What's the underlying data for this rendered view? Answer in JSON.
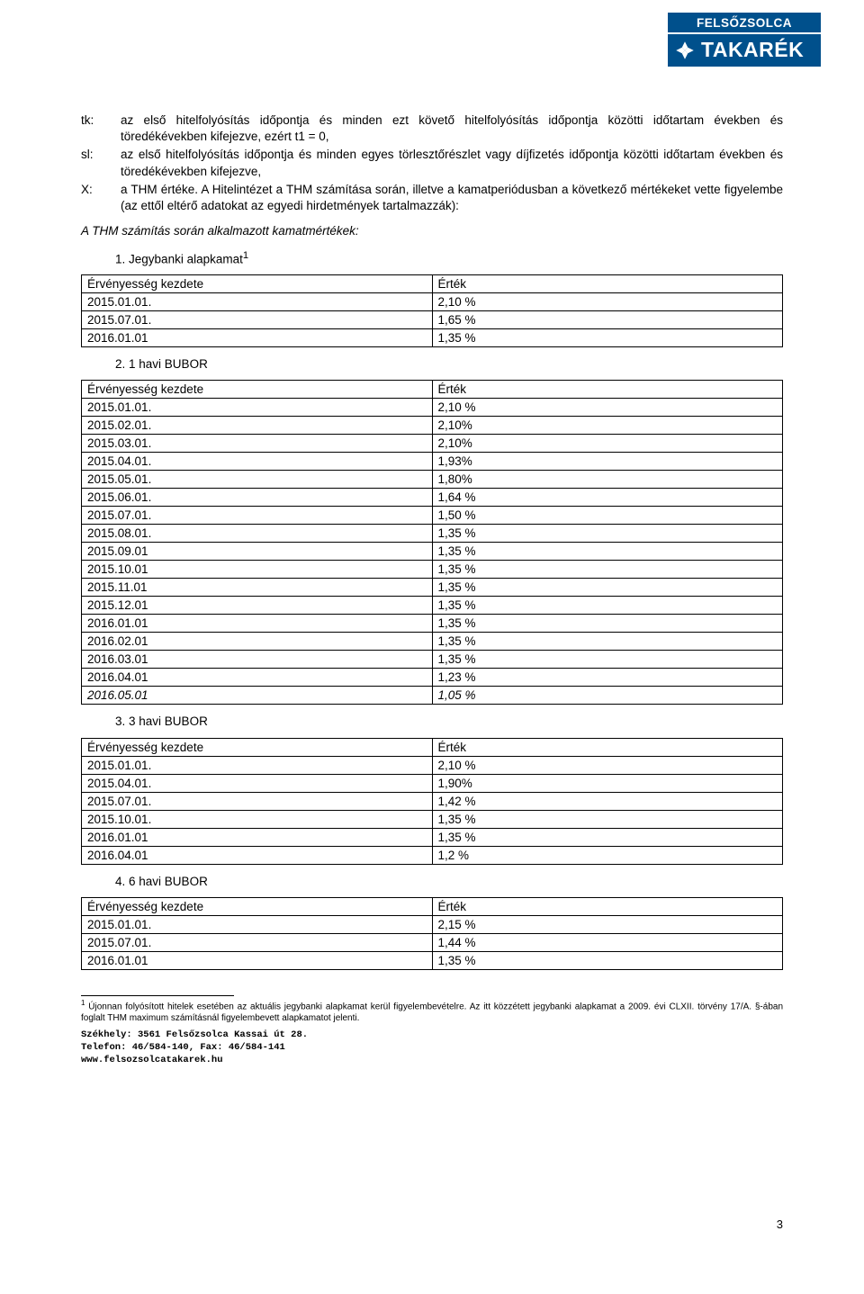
{
  "logo": {
    "top": "FELSŐZSOLCA",
    "bottom": "TAKARÉK",
    "bg_color": "#00508c",
    "text_color": "#ffffff"
  },
  "definitions": [
    {
      "label": "tk:",
      "text": "az első hitelfolyósítás időpontja és minden ezt követő hitelfolyósítás időpontja közötti időtartam években és töredékévekben kifejezve, ezért t1 = 0,"
    },
    {
      "label": "sl:",
      "text": "az első hitelfolyósítás időpontja és minden egyes törlesztőrészlet vagy díjfizetés időpontja közötti időtartam években és töredékévekben kifejezve,"
    },
    {
      "label": "X:",
      "text": "a THM értéke. A Hitelintézet a THM számítása során, illetve a kamatperiódusban a következő mértékeket vette figyelembe (az ettől eltérő adatokat az egyedi hirdetmények tartalmazzák):"
    }
  ],
  "intro_italic": "A THM számítás során alkalmazott kamatmértékek:",
  "sections": [
    {
      "number": "1.",
      "title": "Jegybanki alapkamat",
      "sup": "1",
      "table": {
        "columns": [
          "Érvényesség kezdete",
          "Érték"
        ],
        "rows": [
          [
            "2015.01.01.",
            "2,10 %"
          ],
          [
            "2015.07.01.",
            "1,65 %"
          ],
          [
            "2016.01.01",
            "1,35 %"
          ]
        ],
        "italic_rows": []
      }
    },
    {
      "number": "2.",
      "title": "1 havi BUBOR",
      "sup": "",
      "table": {
        "columns": [
          "Érvényesség kezdete",
          "Érték"
        ],
        "rows": [
          [
            "2015.01.01.",
            "2,10 %"
          ],
          [
            "2015.02.01.",
            "2,10%"
          ],
          [
            "2015.03.01.",
            "2,10%"
          ],
          [
            "2015.04.01.",
            "1,93%"
          ],
          [
            "2015.05.01.",
            "1,80%"
          ],
          [
            "2015.06.01.",
            "1,64 %"
          ],
          [
            "2015.07.01.",
            "1,50 %"
          ],
          [
            "2015.08.01.",
            "1,35 %"
          ],
          [
            "2015.09.01",
            "1,35 %"
          ],
          [
            "2015.10.01",
            "1,35 %"
          ],
          [
            "2015.11.01",
            "1,35 %"
          ],
          [
            "2015.12.01",
            "1,35 %"
          ],
          [
            "2016.01.01",
            "1,35 %"
          ],
          [
            "2016.02.01",
            "1,35 %"
          ],
          [
            "2016.03.01",
            "1,35 %"
          ],
          [
            "2016.04.01",
            "1,23 %"
          ],
          [
            "2016.05.01",
            "1,05 %"
          ]
        ],
        "italic_rows": [
          16
        ]
      }
    },
    {
      "number": "3.",
      "title": "3 havi BUBOR",
      "sup": "",
      "table": {
        "columns": [
          "Érvényesség kezdete",
          "Érték"
        ],
        "rows": [
          [
            "2015.01.01.",
            "2,10 %"
          ],
          [
            "2015.04.01.",
            "1,90%"
          ],
          [
            "2015.07.01.",
            "1,42 %"
          ],
          [
            "2015.10.01.",
            "1,35 %"
          ],
          [
            "2016.01.01",
            "1,35 %"
          ],
          [
            "2016.04.01",
            "1,2 %"
          ]
        ],
        "italic_rows": []
      }
    },
    {
      "number": "4.",
      "title": "6 havi BUBOR",
      "sup": "",
      "table": {
        "columns": [
          "Érvényesség kezdete",
          "Érték"
        ],
        "rows": [
          [
            "2015.01.01.",
            "2,15 %"
          ],
          [
            "2015.07.01.",
            "1,44 %"
          ],
          [
            "2016.01.01",
            "1,35 %"
          ]
        ],
        "italic_rows": []
      }
    }
  ],
  "footnote": {
    "marker": "1",
    "text": "Újonnan folyósított hitelek esetében az aktuális jegybanki alapkamat kerül figyelembevételre. Az itt közzétett jegybanki alapkamat a 2009. évi CLXII. törvény 17/A. §-ában foglalt THM maximum számításnál figyelembevett alapkamatot jelenti."
  },
  "footer": {
    "address": "Székhely: 3561 Felsőzsolca Kassai út 28.",
    "phone": "Telefon: 46/584-140, Fax: 46/584-141",
    "web": "www.felsozsolcatakarek.hu"
  },
  "page_number": "3"
}
